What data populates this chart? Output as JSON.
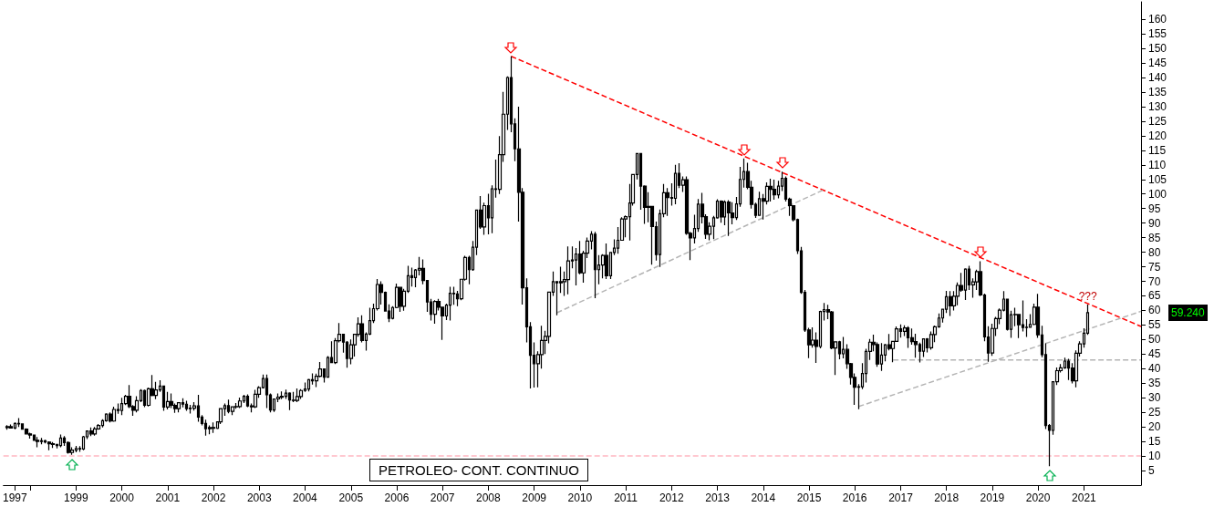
{
  "chart_data": {
    "type": "candlestick",
    "title": "PETROLEO- CONT. CONTINUO",
    "color": "#000000",
    "x": [
      "1997-07",
      "1997-08",
      "1997-09",
      "1997-10",
      "1997-11",
      "1997-12",
      "1998-01",
      "1998-02",
      "1998-03",
      "1998-04",
      "1998-05",
      "1998-06",
      "1998-07",
      "1998-08",
      "1998-09",
      "1998-10",
      "1998-11",
      "1998-12",
      "1999-01",
      "1999-02",
      "1999-03",
      "1999-04",
      "1999-05",
      "1999-06",
      "1999-07",
      "1999-08",
      "1999-09",
      "1999-10",
      "1999-11",
      "1999-12",
      "2000-01",
      "2000-02",
      "2000-03",
      "2000-04",
      "2000-05",
      "2000-06",
      "2000-07",
      "2000-08",
      "2000-09",
      "2000-10",
      "2000-11",
      "2000-12",
      "2001-01",
      "2001-02",
      "2001-03",
      "2001-04",
      "2001-05",
      "2001-06",
      "2001-07",
      "2001-08",
      "2001-09",
      "2001-10",
      "2001-11",
      "2001-12",
      "2002-01",
      "2002-02",
      "2002-03",
      "2002-04",
      "2002-05",
      "2002-06",
      "2002-07",
      "2002-08",
      "2002-09",
      "2002-10",
      "2002-11",
      "2002-12",
      "2003-01",
      "2003-02",
      "2003-03",
      "2003-04",
      "2003-05",
      "2003-06",
      "2003-07",
      "2003-08",
      "2003-09",
      "2003-10",
      "2003-11",
      "2003-12",
      "2004-01",
      "2004-02",
      "2004-03",
      "2004-04",
      "2004-05",
      "2004-06",
      "2004-07",
      "2004-08",
      "2004-09",
      "2004-10",
      "2004-11",
      "2004-12",
      "2005-01",
      "2005-02",
      "2005-03",
      "2005-04",
      "2005-05",
      "2005-06",
      "2005-07",
      "2005-08",
      "2005-09",
      "2005-10",
      "2005-11",
      "2005-12",
      "2006-01",
      "2006-02",
      "2006-03",
      "2006-04",
      "2006-05",
      "2006-06",
      "2006-07",
      "2006-08",
      "2006-09",
      "2006-10",
      "2006-11",
      "2006-12",
      "2007-01",
      "2007-02",
      "2007-03",
      "2007-04",
      "2007-05",
      "2007-06",
      "2007-07",
      "2007-08",
      "2007-09",
      "2007-10",
      "2007-11",
      "2007-12",
      "2008-01",
      "2008-02",
      "2008-03",
      "2008-04",
      "2008-05",
      "2008-06",
      "2008-07",
      "2008-08",
      "2008-09",
      "2008-10",
      "2008-11",
      "2008-12",
      "2009-01",
      "2009-02",
      "2009-03",
      "2009-04",
      "2009-05",
      "2009-06",
      "2009-07",
      "2009-08",
      "2009-09",
      "2009-10",
      "2009-11",
      "2009-12",
      "2010-01",
      "2010-02",
      "2010-03",
      "2010-04",
      "2010-05",
      "2010-06",
      "2010-07",
      "2010-08",
      "2010-09",
      "2010-10",
      "2010-11",
      "2010-12",
      "2011-01",
      "2011-02",
      "2011-03",
      "2011-04",
      "2011-05",
      "2011-06",
      "2011-07",
      "2011-08",
      "2011-09",
      "2011-10",
      "2011-11",
      "2011-12",
      "2012-01",
      "2012-02",
      "2012-03",
      "2012-04",
      "2012-05",
      "2012-06",
      "2012-07",
      "2012-08",
      "2012-09",
      "2012-10",
      "2012-11",
      "2012-12",
      "2013-01",
      "2013-02",
      "2013-03",
      "2013-04",
      "2013-05",
      "2013-06",
      "2013-07",
      "2013-08",
      "2013-09",
      "2013-10",
      "2013-11",
      "2013-12",
      "2014-01",
      "2014-02",
      "2014-03",
      "2014-04",
      "2014-05",
      "2014-06",
      "2014-07",
      "2014-08",
      "2014-09",
      "2014-10",
      "2014-11",
      "2014-12",
      "2015-01",
      "2015-02",
      "2015-03",
      "2015-04",
      "2015-05",
      "2015-06",
      "2015-07",
      "2015-08",
      "2015-09",
      "2015-10",
      "2015-11",
      "2015-12",
      "2016-01",
      "2016-02",
      "2016-03",
      "2016-04",
      "2016-05",
      "2016-06",
      "2016-07",
      "2016-08",
      "2016-09",
      "2016-10",
      "2016-11",
      "2016-12",
      "2017-01",
      "2017-02",
      "2017-03",
      "2017-04",
      "2017-05",
      "2017-06",
      "2017-07",
      "2017-08",
      "2017-09",
      "2017-10",
      "2017-11",
      "2017-12",
      "2018-01",
      "2018-02",
      "2018-03",
      "2018-04",
      "2018-05",
      "2018-06",
      "2018-07",
      "2018-08",
      "2018-09",
      "2018-10",
      "2018-11",
      "2018-12",
      "2019-01",
      "2019-02",
      "2019-03",
      "2019-04",
      "2019-05",
      "2019-06",
      "2019-07",
      "2019-08",
      "2019-09",
      "2019-10",
      "2019-11",
      "2019-12",
      "2020-01",
      "2020-02",
      "2020-03",
      "2020-04",
      "2020-05",
      "2020-06",
      "2020-07",
      "2020-08",
      "2020-09",
      "2020-10",
      "2020-11",
      "2020-12",
      "2021-01",
      "2021-02"
    ],
    "ohlc": [
      [
        19.8,
        20.6,
        19.0,
        20.1
      ],
      [
        20.1,
        20.8,
        19.5,
        19.6
      ],
      [
        19.6,
        21.5,
        19.2,
        21.2
      ],
      [
        21.2,
        23.0,
        20.0,
        21.0
      ],
      [
        21.0,
        21.2,
        19.0,
        19.2
      ],
      [
        19.2,
        19.5,
        17.5,
        17.6
      ],
      [
        17.6,
        18.0,
        16.0,
        17.2
      ],
      [
        17.2,
        17.4,
        15.3,
        15.4
      ],
      [
        15.4,
        16.5,
        13.0,
        15.0
      ],
      [
        15.0,
        16.2,
        14.0,
        15.2
      ],
      [
        15.2,
        15.6,
        14.3,
        14.8
      ],
      [
        14.8,
        15.0,
        12.0,
        14.2
      ],
      [
        14.2,
        14.8,
        12.8,
        14.0
      ],
      [
        14.0,
        14.2,
        12.6,
        13.6
      ],
      [
        13.6,
        17.4,
        13.0,
        16.2
      ],
      [
        16.2,
        16.8,
        13.5,
        14.6
      ],
      [
        14.6,
        15.0,
        10.8,
        11.2
      ],
      [
        11.2,
        13.0,
        10.4,
        12.0
      ],
      [
        12.0,
        13.5,
        11.3,
        12.6
      ],
      [
        12.6,
        13.4,
        11.4,
        12.4
      ],
      [
        12.4,
        16.9,
        12.0,
        16.6
      ],
      [
        16.6,
        18.6,
        15.8,
        18.6
      ],
      [
        18.6,
        19.8,
        16.8,
        17.6
      ],
      [
        17.6,
        20.0,
        17.0,
        19.3
      ],
      [
        19.3,
        21.0,
        19.0,
        20.5
      ],
      [
        20.5,
        22.6,
        19.8,
        22.1
      ],
      [
        22.1,
        24.7,
        21.8,
        24.4
      ],
      [
        24.4,
        25.0,
        21.5,
        22.0
      ],
      [
        22.0,
        26.9,
        21.8,
        26.0
      ],
      [
        26.0,
        28.0,
        24.5,
        25.6
      ],
      [
        25.6,
        30.0,
        24.0,
        28.0
      ],
      [
        28.0,
        31.0,
        27.5,
        30.5
      ],
      [
        30.5,
        34.4,
        26.5,
        27.0
      ],
      [
        27.0,
        27.5,
        23.8,
        25.7
      ],
      [
        25.7,
        30.5,
        25.0,
        29.0
      ],
      [
        29.0,
        33.0,
        28.5,
        32.5
      ],
      [
        32.5,
        32.8,
        26.8,
        27.4
      ],
      [
        27.4,
        33.5,
        27.0,
        33.1
      ],
      [
        33.1,
        37.8,
        30.5,
        30.8
      ],
      [
        30.8,
        35.5,
        29.5,
        32.7
      ],
      [
        32.7,
        36.0,
        32.0,
        34.0
      ],
      [
        34.0,
        34.2,
        25.5,
        26.8
      ],
      [
        26.8,
        32.0,
        26.0,
        28.7
      ],
      [
        28.7,
        31.5,
        26.5,
        27.4
      ],
      [
        27.4,
        28.0,
        24.8,
        26.3
      ],
      [
        26.3,
        28.5,
        25.0,
        28.3
      ],
      [
        28.3,
        29.8,
        26.7,
        27.8
      ],
      [
        27.8,
        29.0,
        25.5,
        26.3
      ],
      [
        26.3,
        27.6,
        24.6,
        26.4
      ],
      [
        26.4,
        28.5,
        25.6,
        27.2
      ],
      [
        27.2,
        31.0,
        21.8,
        23.4
      ],
      [
        23.4,
        24.0,
        20.5,
        21.2
      ],
      [
        21.2,
        22.5,
        17.0,
        19.4
      ],
      [
        19.4,
        20.5,
        17.5,
        19.8
      ],
      [
        19.8,
        21.5,
        17.9,
        19.5
      ],
      [
        19.5,
        21.8,
        19.3,
        21.7
      ],
      [
        21.7,
        26.4,
        21.0,
        26.3
      ],
      [
        26.3,
        28.0,
        23.8,
        27.3
      ],
      [
        27.3,
        29.4,
        24.7,
        25.3
      ],
      [
        25.3,
        27.0,
        24.0,
        26.9
      ],
      [
        26.9,
        28.2,
        26.2,
        27.0
      ],
      [
        27.0,
        30.1,
        26.5,
        28.9
      ],
      [
        28.9,
        31.0,
        28.2,
        30.5
      ],
      [
        30.5,
        31.2,
        26.8,
        27.2
      ],
      [
        27.2,
        28.0,
        25.0,
        26.9
      ],
      [
        26.9,
        32.7,
        26.5,
        31.2
      ],
      [
        31.2,
        34.0,
        30.0,
        33.5
      ],
      [
        33.5,
        38.0,
        33.2,
        36.6
      ],
      [
        36.6,
        38.0,
        26.5,
        31.0
      ],
      [
        31.0,
        31.5,
        25.0,
        25.8
      ],
      [
        25.8,
        29.6,
        25.1,
        29.6
      ],
      [
        29.6,
        31.5,
        28.5,
        30.2
      ],
      [
        30.2,
        32.2,
        29.5,
        30.5
      ],
      [
        30.5,
        32.8,
        29.6,
        31.6
      ],
      [
        31.6,
        31.9,
        25.8,
        29.2
      ],
      [
        29.2,
        32.0,
        28.5,
        29.1
      ],
      [
        29.1,
        33.2,
        28.5,
        30.4
      ],
      [
        30.4,
        33.0,
        29.6,
        32.5
      ],
      [
        32.5,
        35.2,
        32.0,
        33.0
      ],
      [
        33.0,
        36.5,
        32.2,
        36.2
      ],
      [
        36.2,
        38.4,
        34.5,
        35.8
      ],
      [
        35.8,
        38.3,
        33.7,
        37.4
      ],
      [
        37.4,
        42.3,
        37.0,
        39.9
      ],
      [
        39.9,
        40.0,
        35.2,
        37.1
      ],
      [
        37.1,
        44.3,
        37.0,
        43.8
      ],
      [
        43.8,
        49.4,
        42.0,
        42.1
      ],
      [
        42.1,
        50.5,
        41.6,
        49.6
      ],
      [
        49.6,
        55.7,
        49.0,
        51.8
      ],
      [
        51.8,
        52.0,
        45.5,
        49.1
      ],
      [
        49.1,
        49.5,
        40.3,
        43.5
      ],
      [
        43.5,
        50.0,
        41.5,
        48.2
      ],
      [
        48.2,
        52.0,
        44.2,
        51.8
      ],
      [
        51.8,
        57.6,
        51.0,
        55.4
      ],
      [
        55.4,
        58.3,
        49.0,
        49.7
      ],
      [
        49.7,
        52.5,
        46.2,
        51.9
      ],
      [
        51.9,
        60.9,
        51.5,
        56.5
      ],
      [
        56.5,
        62.3,
        55.7,
        60.6
      ],
      [
        60.6,
        70.8,
        60.0,
        68.9
      ],
      [
        68.9,
        70.0,
        62.0,
        66.2
      ],
      [
        66.2,
        66.5,
        59.6,
        59.8
      ],
      [
        59.8,
        62.1,
        56.0,
        57.3
      ],
      [
        57.3,
        61.5,
        56.9,
        61.0
      ],
      [
        61.0,
        69.2,
        60.8,
        67.9
      ],
      [
        67.9,
        68.0,
        59.5,
        61.4
      ],
      [
        61.4,
        67.4,
        59.9,
        66.6
      ],
      [
        66.6,
        75.3,
        66.0,
        71.9
      ],
      [
        71.9,
        74.7,
        68.2,
        71.3
      ],
      [
        71.3,
        74.2,
        68.0,
        73.9
      ],
      [
        73.9,
        78.4,
        72.0,
        74.4
      ],
      [
        74.4,
        77.5,
        69.0,
        70.3
      ],
      [
        70.3,
        70.5,
        59.5,
        62.9
      ],
      [
        62.9,
        64.0,
        56.5,
        58.7
      ],
      [
        58.7,
        63.5,
        55.4,
        63.1
      ],
      [
        63.1,
        64.0,
        60.0,
        61.1
      ],
      [
        61.1,
        61.3,
        49.9,
        58.1
      ],
      [
        58.1,
        62.3,
        56.7,
        61.8
      ],
      [
        61.8,
        68.1,
        56.5,
        65.9
      ],
      [
        65.9,
        68.1,
        61.9,
        65.7
      ],
      [
        65.7,
        66.7,
        61.5,
        64.0
      ],
      [
        64.0,
        70.9,
        63.5,
        70.7
      ],
      [
        70.7,
        78.8,
        70.2,
        78.2
      ],
      [
        78.2,
        78.8,
        69.0,
        74.0
      ],
      [
        74.0,
        83.9,
        73.6,
        81.7
      ],
      [
        81.7,
        94.5,
        79.0,
        94.5
      ],
      [
        94.5,
        99.3,
        88.0,
        88.7
      ],
      [
        88.7,
        97.0,
        86.0,
        96.0
      ],
      [
        96.0,
        100.1,
        86.1,
        91.8
      ],
      [
        91.8,
        103.0,
        86.5,
        101.8
      ],
      [
        101.8,
        111.8,
        98.7,
        101.6
      ],
      [
        101.6,
        119.9,
        100.0,
        113.5
      ],
      [
        113.5,
        135.1,
        111.0,
        127.4
      ],
      [
        127.4,
        140.4,
        122.0,
        140.0
      ],
      [
        140.0,
        147.3,
        121.2,
        124.1
      ],
      [
        124.1,
        126.0,
        111.3,
        115.5
      ],
      [
        115.5,
        130.0,
        90.5,
        100.6
      ],
      [
        100.6,
        102.0,
        62.0,
        67.8
      ],
      [
        67.8,
        71.0,
        49.0,
        54.4
      ],
      [
        54.4,
        56.0,
        33.2,
        44.6
      ],
      [
        44.6,
        49.0,
        33.5,
        41.7
      ],
      [
        41.7,
        46.0,
        33.6,
        44.8
      ],
      [
        44.8,
        54.7,
        40.0,
        49.7
      ],
      [
        49.7,
        53.0,
        45.0,
        51.1
      ],
      [
        51.1,
        66.5,
        48.7,
        66.3
      ],
      [
        66.3,
        73.4,
        65.0,
        69.9
      ],
      [
        69.9,
        70.0,
        58.3,
        69.5
      ],
      [
        69.5,
        75.0,
        66.0,
        69.9
      ],
      [
        69.9,
        73.4,
        65.0,
        70.6
      ],
      [
        70.6,
        82.0,
        65.5,
        77.0
      ],
      [
        77.0,
        82.0,
        74.5,
        77.3
      ],
      [
        77.3,
        81.4,
        68.6,
        79.4
      ],
      [
        79.4,
        83.9,
        72.4,
        72.9
      ],
      [
        72.9,
        80.5,
        69.5,
        79.7
      ],
      [
        79.7,
        85.0,
        78.0,
        83.8
      ],
      [
        83.8,
        87.2,
        81.0,
        86.2
      ],
      [
        86.2,
        87.0,
        64.2,
        74.0
      ],
      [
        74.0,
        79.0,
        69.0,
        75.6
      ],
      [
        75.6,
        79.3,
        71.0,
        78.9
      ],
      [
        78.9,
        83.0,
        70.8,
        71.9
      ],
      [
        71.9,
        80.0,
        70.8,
        79.9
      ],
      [
        79.9,
        84.4,
        79.0,
        81.4
      ],
      [
        81.4,
        88.6,
        79.5,
        84.1
      ],
      [
        84.1,
        92.0,
        84.0,
        91.4
      ],
      [
        91.4,
        92.6,
        85.1,
        92.2
      ],
      [
        92.2,
        103.4,
        84.0,
        96.9
      ],
      [
        96.9,
        106.9,
        96.0,
        106.7
      ],
      [
        106.7,
        114.0,
        105.0,
        113.9
      ],
      [
        113.9,
        114.0,
        94.6,
        102.7
      ],
      [
        102.7,
        103.0,
        89.7,
        95.4
      ],
      [
        95.4,
        100.6,
        90.3,
        95.7
      ],
      [
        95.7,
        95.9,
        75.7,
        88.8
      ],
      [
        88.8,
        90.5,
        77.1,
        79.2
      ],
      [
        79.2,
        94.7,
        74.9,
        93.2
      ],
      [
        93.2,
        103.4,
        92.0,
        100.4
      ],
      [
        100.4,
        102.0,
        92.5,
        98.8
      ],
      [
        98.8,
        103.7,
        96.0,
        98.5
      ],
      [
        98.5,
        110.0,
        96.5,
        107.1
      ],
      [
        107.1,
        110.6,
        102.0,
        103.0
      ],
      [
        103.0,
        106.0,
        100.7,
        104.9
      ],
      [
        104.9,
        106.0,
        86.0,
        86.5
      ],
      [
        86.5,
        87.0,
        77.3,
        84.9
      ],
      [
        84.9,
        92.9,
        83.0,
        88.1
      ],
      [
        88.1,
        98.3,
        87.0,
        96.5
      ],
      [
        96.5,
        100.4,
        89.9,
        92.2
      ],
      [
        92.2,
        93.0,
        84.6,
        86.2
      ],
      [
        86.2,
        90.3,
        84.1,
        88.9
      ],
      [
        88.9,
        92.5,
        84.5,
        91.8
      ],
      [
        91.8,
        98.2,
        91.5,
        97.5
      ],
      [
        97.5,
        97.8,
        90.1,
        92.1
      ],
      [
        92.1,
        97.8,
        89.3,
        97.2
      ],
      [
        97.2,
        97.9,
        85.6,
        93.5
      ],
      [
        93.5,
        97.2,
        89.6,
        91.9
      ],
      [
        91.9,
        99.0,
        91.1,
        96.6
      ],
      [
        96.6,
        109.3,
        95.6,
        105.0
      ],
      [
        105.0,
        112.2,
        102.2,
        107.7
      ],
      [
        107.7,
        110.7,
        101.6,
        102.3
      ],
      [
        102.3,
        104.5,
        95.0,
        96.4
      ],
      [
        96.4,
        97.0,
        91.8,
        92.7
      ],
      [
        92.7,
        100.8,
        92.5,
        98.4
      ],
      [
        98.4,
        100.0,
        91.2,
        97.5
      ],
      [
        97.5,
        104.0,
        96.4,
        102.6
      ],
      [
        102.6,
        105.2,
        97.4,
        101.6
      ],
      [
        101.6,
        104.9,
        98.0,
        99.7
      ],
      [
        99.7,
        104.5,
        98.5,
        102.7
      ],
      [
        102.7,
        107.7,
        101.0,
        105.4
      ],
      [
        105.4,
        106.0,
        97.4,
        98.2
      ],
      [
        98.2,
        98.7,
        92.5,
        96.0
      ],
      [
        96.0,
        96.0,
        90.6,
        91.2
      ],
      [
        91.2,
        91.5,
        79.4,
        80.5
      ],
      [
        80.5,
        81.8,
        65.7,
        66.2
      ],
      [
        66.2,
        67.0,
        52.6,
        53.3
      ],
      [
        53.3,
        54.0,
        43.6,
        48.2
      ],
      [
        48.2,
        54.2,
        47.2,
        49.8
      ],
      [
        49.8,
        52.5,
        42.0,
        47.6
      ],
      [
        47.6,
        59.9,
        47.0,
        59.6
      ],
      [
        59.6,
        62.6,
        56.5,
        60.3
      ],
      [
        60.3,
        61.9,
        57.0,
        59.5
      ],
      [
        59.5,
        59.8,
        46.7,
        47.1
      ],
      [
        47.1,
        49.3,
        37.8,
        49.2
      ],
      [
        49.2,
        49.6,
        43.2,
        45.1
      ],
      [
        45.1,
        50.9,
        43.5,
        46.6
      ],
      [
        46.6,
        48.4,
        39.9,
        41.7
      ],
      [
        41.7,
        42.0,
        34.5,
        37.0
      ],
      [
        37.0,
        38.4,
        27.6,
        33.6
      ],
      [
        33.6,
        34.7,
        26.1,
        33.8
      ],
      [
        33.8,
        41.9,
        33.0,
        38.3
      ],
      [
        38.3,
        46.8,
        35.2,
        45.9
      ],
      [
        45.9,
        50.2,
        43.0,
        49.1
      ],
      [
        49.1,
        51.7,
        46.0,
        48.3
      ],
      [
        48.3,
        49.0,
        40.6,
        41.6
      ],
      [
        41.6,
        48.8,
        39.2,
        44.7
      ],
      [
        44.7,
        48.5,
        42.5,
        48.2
      ],
      [
        48.2,
        51.9,
        46.3,
        46.9
      ],
      [
        46.9,
        49.4,
        42.2,
        49.4
      ],
      [
        49.4,
        54.5,
        49.3,
        53.7
      ],
      [
        53.7,
        55.2,
        50.7,
        52.8
      ],
      [
        52.8,
        54.9,
        51.2,
        54.0
      ],
      [
        54.0,
        54.6,
        47.1,
        50.6
      ],
      [
        50.6,
        53.8,
        48.2,
        49.3
      ],
      [
        49.3,
        52.0,
        43.8,
        48.3
      ],
      [
        48.3,
        48.9,
        42.1,
        46.0
      ],
      [
        46.0,
        50.4,
        44.0,
        50.2
      ],
      [
        50.2,
        50.5,
        45.6,
        47.2
      ],
      [
        47.2,
        52.8,
        46.5,
        51.7
      ],
      [
        51.7,
        54.8,
        49.1,
        54.4
      ],
      [
        54.4,
        59.0,
        54.0,
        57.4
      ],
      [
        57.4,
        60.5,
        55.8,
        60.4
      ],
      [
        60.4,
        66.7,
        59.1,
        64.7
      ],
      [
        64.7,
        66.6,
        58.1,
        61.6
      ],
      [
        61.6,
        66.6,
        60.0,
        64.9
      ],
      [
        64.9,
        69.6,
        61.8,
        68.6
      ],
      [
        68.6,
        72.9,
        66.4,
        67.0
      ],
      [
        67.0,
        74.5,
        63.6,
        74.2
      ],
      [
        74.2,
        75.3,
        67.0,
        68.8
      ],
      [
        68.8,
        71.0,
        64.4,
        69.8
      ],
      [
        69.8,
        74.0,
        67.0,
        73.3
      ],
      [
        73.3,
        76.9,
        64.9,
        65.3
      ],
      [
        65.3,
        65.8,
        49.4,
        50.9
      ],
      [
        50.9,
        54.6,
        42.4,
        45.4
      ],
      [
        45.4,
        55.4,
        44.4,
        53.8
      ],
      [
        53.8,
        57.8,
        51.2,
        57.2
      ],
      [
        57.2,
        60.7,
        55.3,
        60.1
      ],
      [
        60.1,
        66.6,
        59.7,
        63.9
      ],
      [
        63.9,
        64.0,
        53.1,
        53.5
      ],
      [
        53.5,
        59.9,
        50.6,
        58.5
      ],
      [
        58.5,
        60.9,
        54.6,
        58.6
      ],
      [
        58.6,
        58.8,
        50.5,
        55.1
      ],
      [
        55.1,
        63.4,
        52.8,
        54.1
      ],
      [
        54.1,
        57.0,
        50.9,
        54.2
      ],
      [
        54.2,
        58.7,
        54.1,
        55.2
      ],
      [
        55.2,
        62.3,
        55.0,
        61.1
      ],
      [
        61.1,
        65.7,
        50.6,
        51.6
      ],
      [
        51.6,
        54.7,
        43.9,
        44.8
      ],
      [
        44.8,
        48.7,
        19.3,
        20.5
      ],
      [
        20.5,
        21.0,
        6.5,
        18.8
      ],
      [
        18.8,
        35.5,
        17.3,
        35.5
      ],
      [
        35.5,
        40.4,
        34.4,
        39.3
      ],
      [
        39.3,
        41.6,
        38.7,
        40.3
      ],
      [
        40.3,
        43.8,
        39.9,
        42.6
      ],
      [
        42.6,
        43.4,
        36.1,
        40.2
      ],
      [
        40.2,
        41.9,
        34.9,
        35.8
      ],
      [
        35.8,
        46.3,
        33.6,
        45.3
      ],
      [
        45.3,
        49.4,
        44.2,
        48.5
      ],
      [
        48.5,
        53.9,
        47.2,
        52.2
      ],
      [
        52.2,
        62.0,
        51.6,
        59.24
      ]
    ],
    "series": [
      {
        "type": "line",
        "color": "#ff0000",
        "line_style": "dashed",
        "x": [
          "2008-07",
          "2022-04"
        ],
        "values": [
          147.3,
          54.5
        ]
      },
      {
        "type": "line",
        "color": "#b4b4b4",
        "line_style": "dashed",
        "x": [
          "2009-07",
          "2015-05"
        ],
        "values": [
          59.2,
          101.5
        ]
      },
      {
        "type": "line",
        "color": "#b4b4b4",
        "line_style": "dashed",
        "x": [
          "2016-02",
          "2022-04"
        ],
        "values": [
          27,
          59.7
        ]
      },
      {
        "type": "line",
        "color": "#b4b4b4",
        "line_style": "dashed",
        "x": [
          "2016-11",
          "2022-04"
        ],
        "values": [
          43,
          43
        ]
      }
    ],
    "ref_lines": [
      {
        "axis": "y",
        "value": 10,
        "color": "#ffb6c1",
        "line_style": "dashed"
      }
    ],
    "annotations": [
      "???",
      "59.240"
    ],
    "xlim": [
      "1997-06",
      "2022-04"
    ],
    "xticks": [
      {
        "value": "1997-09",
        "label": "1997"
      },
      {
        "value": "1998",
        "label": null
      },
      "1999",
      "2000",
      "2001",
      "2002",
      "2003",
      "2004",
      "2005",
      "2006",
      "2007",
      "2008",
      "2009",
      "2010",
      "2011",
      "2012",
      "2013",
      "2014",
      "2015",
      "2016",
      "2017",
      "2018",
      "2019",
      "2020",
      "2021"
    ],
    "ylim": [
      0,
      166
    ],
    "yticks": [
      5,
      10,
      15,
      20,
      25,
      30,
      35,
      40,
      45,
      50,
      55,
      60,
      65,
      70,
      75,
      80,
      85,
      90,
      95,
      100,
      105,
      110,
      115,
      120,
      125,
      130,
      135,
      140,
      145,
      150,
      155,
      160
    ],
    "grid": false
  }
}
